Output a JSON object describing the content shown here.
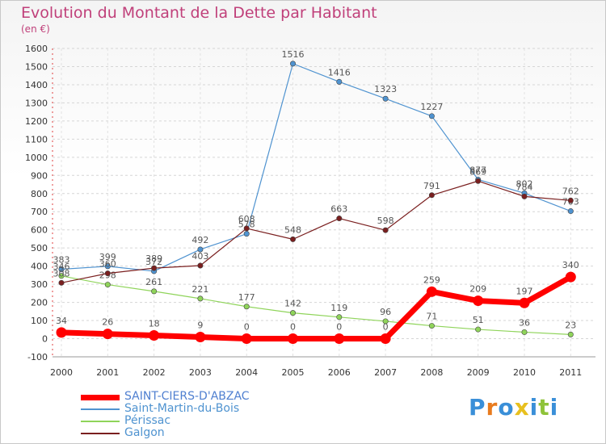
{
  "chart_data": {
    "type": "line",
    "title": "Evolution du Montant de la Dette par Habitant",
    "subtitle": "(en €)",
    "xlabel": "",
    "ylabel": "",
    "x": [
      "2000",
      "2001",
      "2002",
      "2003",
      "2004",
      "2005",
      "2006",
      "2007",
      "2008",
      "2009",
      "2010",
      "2011"
    ],
    "ylim": [
      -100,
      1600
    ],
    "yticks": [
      -100,
      0,
      100,
      200,
      300,
      400,
      500,
      600,
      700,
      800,
      900,
      1000,
      1100,
      1200,
      1300,
      1400,
      1500,
      1600
    ],
    "grid": "horizontal-dashed",
    "legend_position": "bottom-left",
    "series": [
      {
        "name": "SAINT-CIERS-D'ABZAC",
        "color": "#ff0000",
        "values": [
          34,
          26,
          18,
          9,
          0,
          0,
          0,
          0,
          259,
          209,
          197,
          340
        ]
      },
      {
        "name": "Saint-Martin-du-Bois",
        "color": "#4f93d0",
        "values": [
          383,
          399,
          372,
          492,
          578,
          1516,
          1416,
          1323,
          1227,
          877,
          802,
          703
        ]
      },
      {
        "name": "Périssac",
        "color": "#8fd45a",
        "values": [
          346,
          298,
          261,
          221,
          177,
          142,
          119,
          96,
          71,
          51,
          36,
          23
        ]
      },
      {
        "name": "Galgon",
        "color": "#7a1f1f",
        "values": [
          308,
          360,
          389,
          403,
          608,
          548,
          663,
          598,
          791,
          869,
          784,
          762
        ]
      }
    ]
  },
  "logo": {
    "text": "Proxiti",
    "colors": [
      "#3a8fd8",
      "#e87b1e",
      "#3a8fd8",
      "#e8c01e",
      "#3a8fd8",
      "#8fc33a",
      "#3a8fd8"
    ]
  }
}
